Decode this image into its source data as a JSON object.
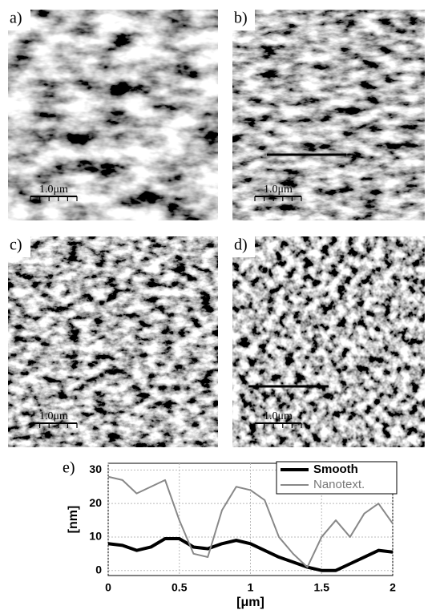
{
  "panels": [
    {
      "label": "a)",
      "scale": "1.0μm"
    },
    {
      "label": "b)",
      "scale": "1.0μm"
    },
    {
      "label": "c)",
      "scale": "1.0μm"
    },
    {
      "label": "d)",
      "scale": "1.0μm"
    }
  ],
  "chart_data": {
    "type": "line",
    "panel_label": "e)",
    "x_label": "[μm]",
    "y_label": "[nm]",
    "x": [
      0,
      0.1,
      0.2,
      0.3,
      0.4,
      0.5,
      0.6,
      0.7,
      0.8,
      0.9,
      1.0,
      1.1,
      1.2,
      1.3,
      1.4,
      1.5,
      1.6,
      1.7,
      1.8,
      1.9,
      2.0
    ],
    "series": [
      {
        "name": "Smooth",
        "color": "#000000",
        "width": 4,
        "values": [
          8,
          7.5,
          6,
          7,
          9.5,
          9.5,
          7,
          6.5,
          8,
          9,
          8,
          6,
          4,
          2.5,
          1,
          0,
          0,
          2,
          4,
          6,
          5.5
        ]
      },
      {
        "name": "Nanotext.",
        "color": "#888888",
        "width": 2,
        "values": [
          28,
          27,
          23,
          25,
          27,
          15,
          5,
          4,
          18,
          25,
          24,
          21,
          10,
          5,
          1,
          10,
          15,
          10,
          17,
          20,
          14
        ]
      }
    ],
    "xlim": [
      0,
      2
    ],
    "xticks": [
      0,
      0.5,
      1,
      1.5,
      2
    ],
    "ylim": [
      -1.5,
      32
    ],
    "yticks": [
      0,
      10,
      20,
      30
    ],
    "grid": true,
    "legend": "upper right"
  }
}
